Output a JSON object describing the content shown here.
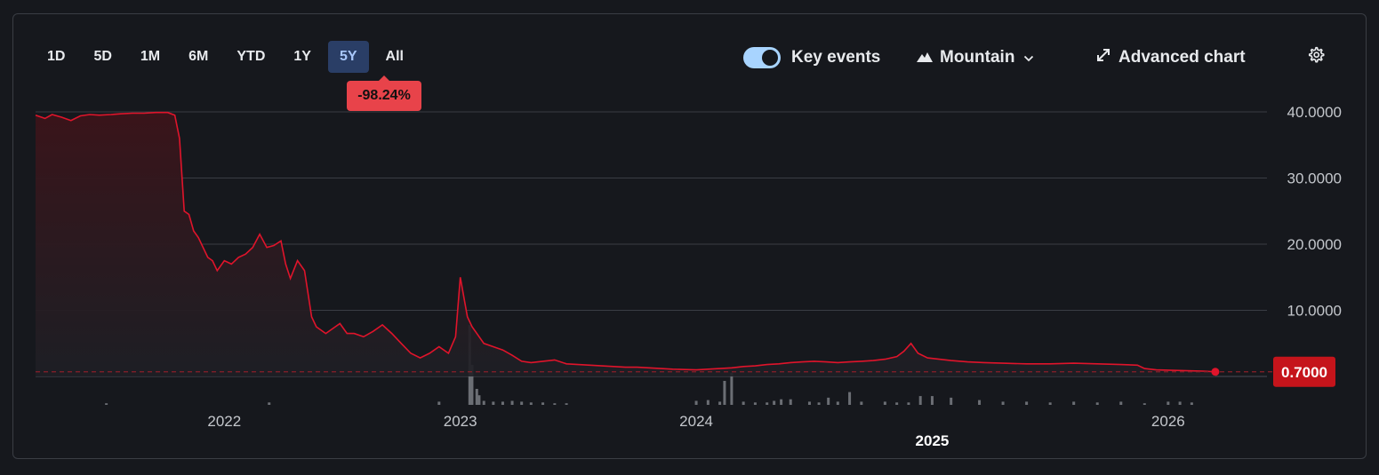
{
  "ranges": {
    "items": [
      "1D",
      "5D",
      "1M",
      "6M",
      "YTD",
      "1Y",
      "5Y",
      "All"
    ],
    "selected": "5Y"
  },
  "change_badge": "-98.24%",
  "toolbar": {
    "key_events_label": "Key events",
    "key_events_on": true,
    "chart_type_label": "Mountain",
    "advanced_chart_label": "Advanced chart"
  },
  "colors": {
    "line": "#e0142b",
    "badge": "#e8434a",
    "price_label": "#c5141b",
    "active_range_bg": "#2a3e66",
    "active_range_text": "#a8c7fa"
  },
  "chart_data": {
    "type": "area",
    "ylim": [
      0,
      40
    ],
    "y_ticks": [
      {
        "value": 40,
        "label": "40.0000"
      },
      {
        "value": 30,
        "label": "30.0000"
      },
      {
        "value": 20,
        "label": "20.0000"
      },
      {
        "value": 10,
        "label": "10.0000"
      }
    ],
    "x_range": [
      2021.2,
      2026.4
    ],
    "x_ticks": [
      {
        "value": 2022,
        "label": "2022",
        "row": 1
      },
      {
        "value": 2023,
        "label": "2023",
        "row": 1
      },
      {
        "value": 2024,
        "label": "2024",
        "row": 1
      },
      {
        "value": 2025,
        "label": "2025",
        "row": 2
      },
      {
        "value": 2026,
        "label": "2026",
        "row": 1
      }
    ],
    "last_price": 0.7,
    "last_price_label": "0.7000",
    "series": [
      {
        "x": [
          2021.2,
          2021.24,
          2021.27,
          2021.31,
          2021.35,
          2021.39,
          2021.43,
          2021.47,
          2021.52,
          2021.56,
          2021.61,
          2021.66,
          2021.71,
          2021.76,
          2021.79,
          2021.81,
          2021.83,
          2021.85,
          2021.87,
          2021.89,
          2021.91,
          2021.93,
          2021.95,
          2021.97,
          2022.0,
          2022.03,
          2022.06,
          2022.09,
          2022.12,
          2022.15,
          2022.18,
          2022.21,
          2022.24,
          2022.26,
          2022.28,
          2022.31,
          2022.34,
          2022.37,
          2022.39,
          2022.41,
          2022.43,
          2022.45,
          2022.47,
          2022.49,
          2022.52,
          2022.55,
          2022.59,
          2022.63,
          2022.67,
          2022.71,
          2022.75,
          2022.79,
          2022.83,
          2022.87,
          2022.91,
          2022.95,
          2022.98,
          2023.0,
          2023.03,
          2023.05,
          2023.07,
          2023.1,
          2023.14,
          2023.18,
          2023.22,
          2023.26,
          2023.3,
          2023.35,
          2023.4,
          2023.45,
          2023.5,
          2023.55,
          2023.6,
          2023.65,
          2023.7,
          2023.75,
          2023.8,
          2023.85,
          2023.9,
          2023.95,
          2024.0,
          2024.05,
          2024.1,
          2024.15,
          2024.2,
          2024.25,
          2024.3,
          2024.35,
          2024.4,
          2024.45,
          2024.5,
          2024.55,
          2024.6,
          2024.65,
          2024.7,
          2024.75,
          2024.8,
          2024.85,
          2024.88,
          2024.91,
          2024.94,
          2024.98,
          2025.03,
          2025.08,
          2025.15,
          2025.22,
          2025.3,
          2025.4,
          2025.5,
          2025.6,
          2025.7,
          2025.8,
          2025.87,
          2025.9,
          2025.95,
          2026.0,
          2026.05,
          2026.1,
          2026.15,
          2026.2
        ],
        "y": [
          39.5,
          39.0,
          39.6,
          39.2,
          38.7,
          39.4,
          39.6,
          39.5,
          39.6,
          39.7,
          39.8,
          39.8,
          39.9,
          39.9,
          39.5,
          36.0,
          25.0,
          24.5,
          22.0,
          21.0,
          19.5,
          18.0,
          17.5,
          16.0,
          17.5,
          17.0,
          18.0,
          18.5,
          19.5,
          21.5,
          19.5,
          19.8,
          20.5,
          17.0,
          14.8,
          17.5,
          16.0,
          9.0,
          7.5,
          7.0,
          6.5,
          7.0,
          7.5,
          8.0,
          6.5,
          6.5,
          6.0,
          6.8,
          7.8,
          6.5,
          5.0,
          3.5,
          2.8,
          3.5,
          4.5,
          3.5,
          6.0,
          15.0,
          9.0,
          7.5,
          6.5,
          5.0,
          4.5,
          4.0,
          3.2,
          2.3,
          2.1,
          2.3,
          2.5,
          1.9,
          1.8,
          1.7,
          1.6,
          1.5,
          1.4,
          1.4,
          1.3,
          1.2,
          1.1,
          1.05,
          1.0,
          1.1,
          1.2,
          1.3,
          1.5,
          1.6,
          1.8,
          1.9,
          2.1,
          2.2,
          2.3,
          2.2,
          2.1,
          2.2,
          2.3,
          2.4,
          2.6,
          3.0,
          3.8,
          5.0,
          3.5,
          2.8,
          2.6,
          2.4,
          2.2,
          2.1,
          2.0,
          1.9,
          1.9,
          2.0,
          1.9,
          1.8,
          1.7,
          1.2,
          1.0,
          0.95,
          0.9,
          0.85,
          0.8,
          0.7
        ]
      }
    ],
    "volume": {
      "x": [
        2021.5,
        2022.19,
        2022.91,
        2023.04,
        2023.05,
        2023.07,
        2023.08,
        2023.1,
        2023.14,
        2023.18,
        2023.22,
        2023.26,
        2023.3,
        2023.35,
        2023.4,
        2023.45,
        2024.0,
        2024.05,
        2024.1,
        2024.12,
        2024.15,
        2024.2,
        2024.25,
        2024.3,
        2024.33,
        2024.36,
        2024.4,
        2024.48,
        2024.52,
        2024.56,
        2024.6,
        2024.65,
        2024.7,
        2024.8,
        2024.85,
        2024.9,
        2024.95,
        2025.0,
        2025.08,
        2025.2,
        2025.3,
        2025.4,
        2025.5,
        2025.6,
        2025.7,
        2025.8,
        2025.9,
        2026.0,
        2026.05,
        2026.1
      ],
      "v": [
        0.02,
        0.03,
        0.04,
        1.0,
        0.5,
        0.2,
        0.12,
        0.05,
        0.04,
        0.04,
        0.05,
        0.04,
        0.03,
        0.03,
        0.02,
        0.02,
        0.05,
        0.06,
        0.04,
        0.3,
        0.4,
        0.04,
        0.03,
        0.03,
        0.05,
        0.07,
        0.07,
        0.04,
        0.03,
        0.09,
        0.04,
        0.16,
        0.04,
        0.04,
        0.03,
        0.03,
        0.11,
        0.11,
        0.09,
        0.06,
        0.04,
        0.04,
        0.03,
        0.04,
        0.03,
        0.04,
        0.02,
        0.04,
        0.04,
        0.03
      ]
    }
  }
}
